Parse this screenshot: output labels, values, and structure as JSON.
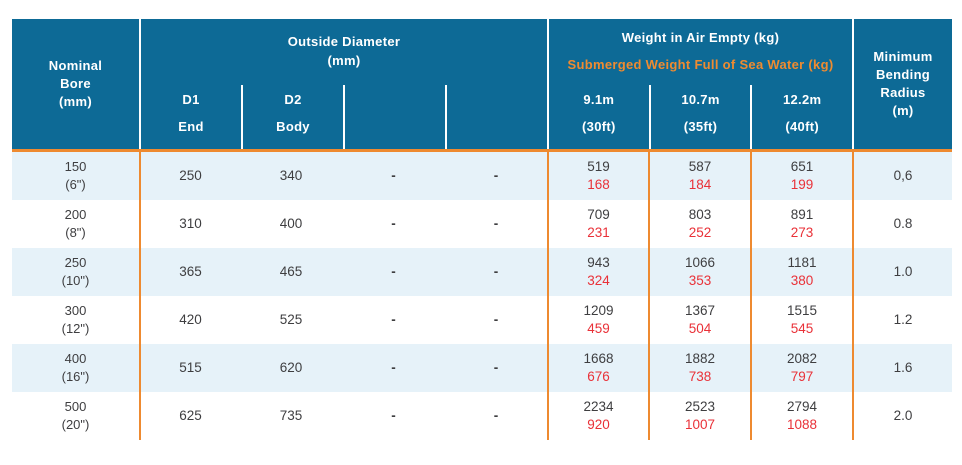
{
  "colors": {
    "header_bg": "#0d6a96",
    "accent_orange": "#ee8a30",
    "submerged_red": "#e93138",
    "row_alt_blue": "#e6f2f9",
    "body_text": "#3e3e40"
  },
  "header": {
    "nominal_bore": {
      "line1": "Nominal",
      "line2": "Bore",
      "line3": "(mm)"
    },
    "outside_diameter": {
      "title": "Outside Diameter",
      "unit": "(mm)",
      "sub": [
        {
          "top": "D1",
          "bottom": "End"
        },
        {
          "top": "D2",
          "bottom": "Body"
        },
        {
          "top": "",
          "bottom": ""
        },
        {
          "top": "",
          "bottom": ""
        }
      ]
    },
    "weight": {
      "title": "Weight in Air Empty (kg)",
      "subtitle": "Submerged Weight Full of Sea Water (kg)",
      "sub": [
        {
          "top": "9.1m",
          "bottom": "(30ft)"
        },
        {
          "top": "10.7m",
          "bottom": "(35ft)"
        },
        {
          "top": "12.2m",
          "bottom": "(40ft)"
        }
      ]
    },
    "min_bending": {
      "line1": "Minimum",
      "line2": "Bending",
      "line3": "Radius",
      "line4": "(m)"
    }
  },
  "rows": [
    {
      "bore": "150",
      "bore_in": "(6\")",
      "d1": "250",
      "d2": "340",
      "dash1": "-",
      "dash2": "-",
      "w91_air": "519",
      "w91_sub": "168",
      "w107_air": "587",
      "w107_sub": "184",
      "w122_air": "651",
      "w122_sub": "199",
      "mbr": "0,6"
    },
    {
      "bore": "200",
      "bore_in": "(8\")",
      "d1": "310",
      "d2": "400",
      "dash1": "-",
      "dash2": "-",
      "w91_air": "709",
      "w91_sub": "231",
      "w107_air": "803",
      "w107_sub": "252",
      "w122_air": "891",
      "w122_sub": "273",
      "mbr": "0.8"
    },
    {
      "bore": "250",
      "bore_in": "(10\")",
      "d1": "365",
      "d2": "465",
      "dash1": "-",
      "dash2": "-",
      "w91_air": "943",
      "w91_sub": "324",
      "w107_air": "1066",
      "w107_sub": "353",
      "w122_air": "1181",
      "w122_sub": "380",
      "mbr": "1.0"
    },
    {
      "bore": "300",
      "bore_in": "(12\")",
      "d1": "420",
      "d2": "525",
      "dash1": "-",
      "dash2": "-",
      "w91_air": "1209",
      "w91_sub": "459",
      "w107_air": "1367",
      "w107_sub": "504",
      "w122_air": "1515",
      "w122_sub": "545",
      "mbr": "1.2"
    },
    {
      "bore": "400",
      "bore_in": "(16\")",
      "d1": "515",
      "d2": "620",
      "dash1": "-",
      "dash2": "-",
      "w91_air": "1668",
      "w91_sub": "676",
      "w107_air": "1882",
      "w107_sub": "738",
      "w122_air": "2082",
      "w122_sub": "797",
      "mbr": "1.6"
    },
    {
      "bore": "500",
      "bore_in": "(20\")",
      "d1": "625",
      "d2": "735",
      "dash1": "-",
      "dash2": "-",
      "w91_air": "2234",
      "w91_sub": "920",
      "w107_air": "2523",
      "w107_sub": "1007",
      "w122_air": "2794",
      "w122_sub": "1088",
      "mbr": "2.0"
    }
  ]
}
